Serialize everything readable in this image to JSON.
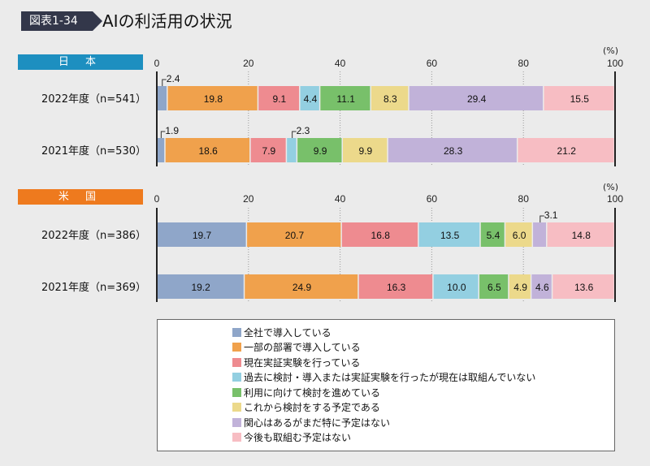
{
  "header": {
    "figure_number": "図表1-34",
    "title": "AIの利活用の状況"
  },
  "chart_data": [
    {
      "type": "bar",
      "stacked": true,
      "orientation": "horizontal",
      "panel_label": "日 本",
      "panel_color": "#1d8fc0",
      "unit_label": "(%)",
      "xlim": [
        0,
        100
      ],
      "xticks": [
        0,
        20,
        40,
        60,
        80,
        100
      ],
      "grid": true,
      "categories": [
        "2022年度（n=541）",
        "2021年度（n=530）"
      ],
      "values": [
        [
          2.4,
          19.8,
          9.1,
          4.4,
          11.1,
          8.3,
          29.4,
          15.5
        ],
        [
          1.9,
          18.6,
          7.9,
          2.3,
          9.9,
          9.9,
          28.3,
          21.2
        ]
      ]
    },
    {
      "type": "bar",
      "stacked": true,
      "orientation": "horizontal",
      "panel_label": "米 国",
      "panel_color": "#ee7a1e",
      "unit_label": "(%)",
      "xlim": [
        0,
        100
      ],
      "xticks": [
        0,
        20,
        40,
        60,
        80,
        100
      ],
      "grid": true,
      "categories": [
        "2022年度（n=386）",
        "2021年度（n=369）"
      ],
      "values": [
        [
          19.7,
          20.7,
          16.8,
          13.5,
          5.4,
          6.0,
          3.1,
          14.8
        ],
        [
          19.2,
          24.9,
          16.3,
          10.0,
          6.5,
          4.9,
          4.6,
          13.6
        ]
      ]
    }
  ],
  "legend": {
    "placement": "bottom",
    "items": [
      {
        "label": "全社で導入している",
        "color": "#8fa6c9"
      },
      {
        "label": "一部の部署で導入している",
        "color": "#f0a14c"
      },
      {
        "label": "現在実証実験を行っている",
        "color": "#ee8b90"
      },
      {
        "label": "過去に検討・導入または実証実験を行ったが現在は取組んでいない",
        "color": "#93cfe1"
      },
      {
        "label": "利用に向けて検討を進めている",
        "color": "#78c06a"
      },
      {
        "label": "これから検討をする予定である",
        "color": "#ecd98b"
      },
      {
        "label": "関心はあるがまだ特に予定はない",
        "color": "#c1b2d9"
      },
      {
        "label": "今後も取組む予定はない",
        "color": "#f7bdc3"
      }
    ]
  }
}
